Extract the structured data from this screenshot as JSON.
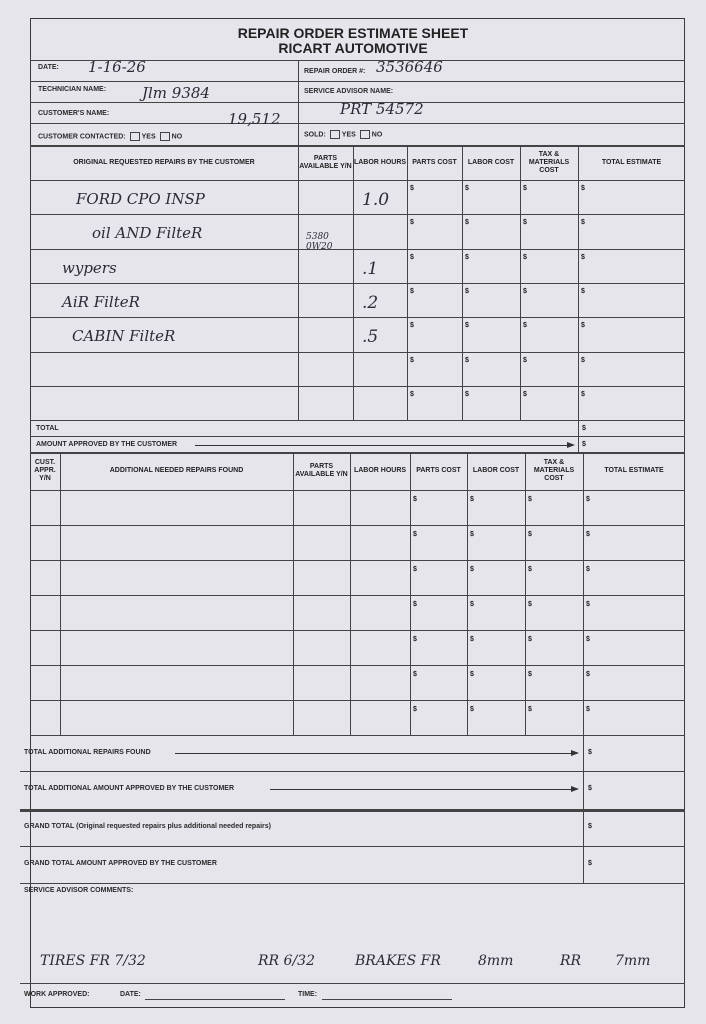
{
  "form": {
    "title": "REPAIR ORDER ESTIMATE SHEET",
    "subtitle": "RICART AUTOMOTIVE",
    "fields": {
      "date_label": "DATE:",
      "date_value": "1-16-26",
      "repair_order_label": "REPAIR ORDER #:",
      "repair_order_value": "3536646",
      "technician_label": "TECHNICIAN NAME:",
      "technician_value": "Jlm 9384",
      "service_advisor_label": "SERVICE ADVISOR NAME:",
      "service_advisor_value": "PRT 54572",
      "customer_label": "CUSTOMER'S NAME:",
      "customer_value": "19,512",
      "contacted_label": "CUSTOMER CONTACTED:",
      "sold_label": "SOLD:",
      "yes": "YES",
      "no": "NO"
    },
    "original": {
      "headers": [
        "ORIGINAL REQUESTED REPAIRS BY THE CUSTOMER",
        "PARTS AVAILABLE Y/N",
        "LABOR HOURS",
        "PARTS COST",
        "LABOR COST",
        "TAX & MATERIALS COST",
        "TOTAL ESTIMATE"
      ],
      "rows": [
        {
          "desc": "FORD CPO INSP",
          "parts": "",
          "hours": "1.0"
        },
        {
          "desc": "oil AND FilteR",
          "parts": "5380 0W20",
          "hours": ""
        },
        {
          "desc": "wypers",
          "parts": "",
          "hours": ".1"
        },
        {
          "desc": "AiR FilteR",
          "parts": "",
          "hours": ".2"
        },
        {
          "desc": "CABIN FilteR",
          "parts": "",
          "hours": ".5"
        },
        {
          "desc": "",
          "parts": "",
          "hours": ""
        },
        {
          "desc": "",
          "parts": "",
          "hours": ""
        }
      ],
      "total_label": "TOTAL",
      "approved_label": "AMOUNT APPROVED BY THE CUSTOMER"
    },
    "additional": {
      "headers": [
        "CUST. APPR. Y/N",
        "ADDITIONAL NEEDED REPAIRS FOUND",
        "PARTS AVAILABLE Y/N",
        "LABOR HOURS",
        "PARTS COST",
        "LABOR COST",
        "TAX & MATERIALS COST",
        "TOTAL ESTIMATE"
      ],
      "row_count": 7,
      "total_label": "TOTAL ADDITIONAL REPAIRS FOUND",
      "approved_label": "TOTAL ADDITIONAL AMOUNT APPROVED BY THE CUSTOMER"
    },
    "grand_total_label": "GRAND TOTAL (Original requested repairs plus additional needed repairs)",
    "grand_approved_label": "GRAND TOTAL AMOUNT APPROVED BY THE CUSTOMER",
    "comments_label": "SERVICE ADVISOR COMMENTS:",
    "comments": [
      "TIRES FR 7/32",
      "RR 6/32",
      "BRAKES FR",
      "8mm",
      "RR",
      "7mm"
    ],
    "work_approved_label": "WORK APPROVED:",
    "date_label2": "DATE:",
    "time_label": "TIME:",
    "currency": "$"
  }
}
